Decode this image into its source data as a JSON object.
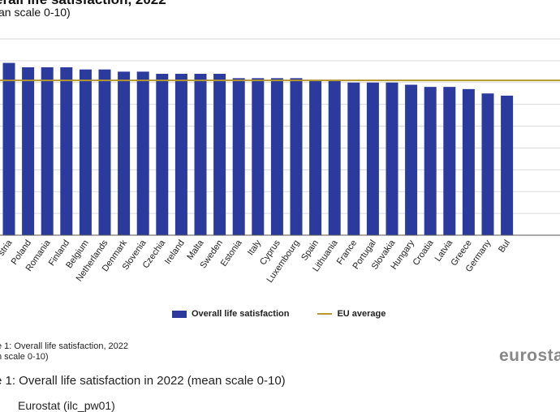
{
  "header": {
    "title": "erall life satisfaction, 2022",
    "subtitle": "an scale 0-10)"
  },
  "legend": {
    "bar_label": "Overall life satisfaction",
    "line_label": "EU average"
  },
  "colors": {
    "bar": "#2b3a9d",
    "eu_line": "#b5972e",
    "grid": "#d9d9d9",
    "axis": "#555555"
  },
  "footer": {
    "note_line1": "e 1: Overall life satisfaction, 2022",
    "note_line2": "n scale 0-10)",
    "logo": "eurostat",
    "caption": "e 1: Overall life satisfaction in 2022 (mean scale 0-10)",
    "source": "Eurostat (ilc_pw01)"
  },
  "chart_data": {
    "type": "bar",
    "title": "",
    "xlabel": "",
    "ylabel": "",
    "ylim": [
      0,
      9
    ],
    "grid": true,
    "legend_position": "bottom",
    "categories": [
      "stria",
      "Poland",
      "Romania",
      "Finland",
      "Belgium",
      "Netherlands",
      "Denmark",
      "Slovenia",
      "Czechia",
      "Ireland",
      "Malta",
      "Sweden",
      "Estonia",
      "Italy",
      "Cyprus",
      "Luxembourg",
      "Spain",
      "Lithuania",
      "France",
      "Portugal",
      "Slovakia",
      "Hungary",
      "Croatia",
      "Latvia",
      "Greece",
      "Germany",
      "Bul"
    ],
    "series": [
      {
        "name": "Overall life satisfaction",
        "values": [
          7.9,
          7.7,
          7.7,
          7.7,
          7.6,
          7.6,
          7.5,
          7.5,
          7.4,
          7.4,
          7.4,
          7.4,
          7.2,
          7.2,
          7.2,
          7.2,
          7.1,
          7.1,
          7.0,
          7.0,
          7.0,
          6.9,
          6.8,
          6.8,
          6.7,
          6.5,
          6.4
        ]
      }
    ],
    "reference_line": {
      "name": "EU average",
      "value": 7.1
    }
  }
}
